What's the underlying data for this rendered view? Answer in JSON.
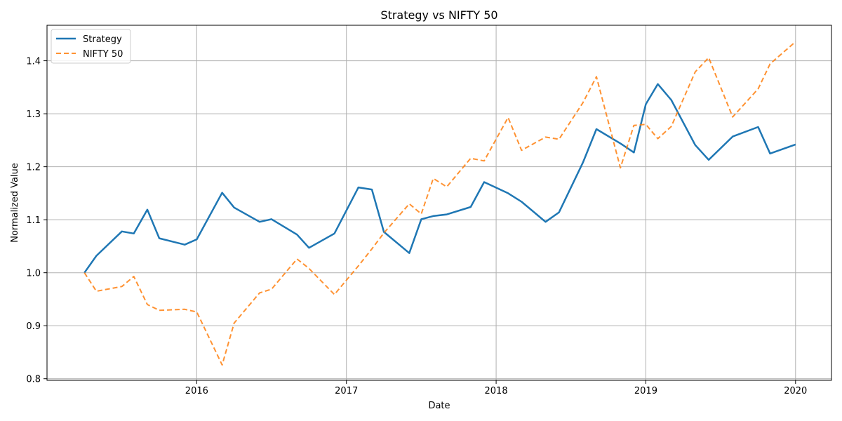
{
  "chart_data": {
    "type": "line",
    "title": "Strategy vs NIFTY 50",
    "xlabel": "Date",
    "ylabel": "Normalized Value",
    "xlim": [
      2015.0,
      2020.24
    ],
    "ylim": [
      0.797,
      1.467
    ],
    "x_ticks": [
      2016,
      2017,
      2018,
      2019,
      2020
    ],
    "x_tick_labels": [
      "2016",
      "2017",
      "2018",
      "2019",
      "2020"
    ],
    "y_ticks": [
      0.8,
      0.9,
      1.0,
      1.1,
      1.2,
      1.3,
      1.4
    ],
    "y_tick_labels": [
      "0.8",
      "0.9",
      "1.0",
      "1.1",
      "1.2",
      "1.3",
      "1.4"
    ],
    "grid": true,
    "legend_position": "top-left",
    "series": [
      {
        "name": "Strategy",
        "color": "#1f77b4",
        "style": "solid",
        "points": [
          [
            2015.25,
            1.0
          ],
          [
            2015.33,
            1.032
          ],
          [
            2015.5,
            1.078
          ],
          [
            2015.58,
            1.074
          ],
          [
            2015.67,
            1.119
          ],
          [
            2015.75,
            1.065
          ],
          [
            2015.92,
            1.053
          ],
          [
            2016.0,
            1.063
          ],
          [
            2016.17,
            1.151
          ],
          [
            2016.25,
            1.123
          ],
          [
            2016.42,
            1.096
          ],
          [
            2016.5,
            1.101
          ],
          [
            2016.67,
            1.072
          ],
          [
            2016.75,
            1.047
          ],
          [
            2016.92,
            1.074
          ],
          [
            2017.08,
            1.161
          ],
          [
            2017.17,
            1.157
          ],
          [
            2017.25,
            1.077
          ],
          [
            2017.42,
            1.037
          ],
          [
            2017.5,
            1.101
          ],
          [
            2017.58,
            1.107
          ],
          [
            2017.67,
            1.11
          ],
          [
            2017.83,
            1.124
          ],
          [
            2017.92,
            1.171
          ],
          [
            2018.08,
            1.15
          ],
          [
            2018.17,
            1.134
          ],
          [
            2018.33,
            1.096
          ],
          [
            2018.42,
            1.114
          ],
          [
            2018.58,
            1.208
          ],
          [
            2018.67,
            1.271
          ],
          [
            2018.83,
            1.244
          ],
          [
            2018.92,
            1.227
          ],
          [
            2019.0,
            1.318
          ],
          [
            2019.08,
            1.356
          ],
          [
            2019.17,
            1.326
          ],
          [
            2019.33,
            1.241
          ],
          [
            2019.42,
            1.213
          ],
          [
            2019.58,
            1.257
          ],
          [
            2019.75,
            1.275
          ],
          [
            2019.83,
            1.225
          ],
          [
            2020.0,
            1.242
          ]
        ]
      },
      {
        "name": "NIFTY 50",
        "color": "#ff7f0e",
        "style": "dashed",
        "points": [
          [
            2015.25,
            1.0
          ],
          [
            2015.33,
            0.965
          ],
          [
            2015.5,
            0.974
          ],
          [
            2015.58,
            0.993
          ],
          [
            2015.67,
            0.94
          ],
          [
            2015.75,
            0.929
          ],
          [
            2015.92,
            0.931
          ],
          [
            2016.0,
            0.926
          ],
          [
            2016.17,
            0.826
          ],
          [
            2016.25,
            0.905
          ],
          [
            2016.42,
            0.962
          ],
          [
            2016.5,
            0.969
          ],
          [
            2016.67,
            1.026
          ],
          [
            2016.75,
            1.008
          ],
          [
            2016.92,
            0.959
          ],
          [
            2017.08,
            1.013
          ],
          [
            2017.17,
            1.045
          ],
          [
            2017.25,
            1.075
          ],
          [
            2017.42,
            1.13
          ],
          [
            2017.5,
            1.111
          ],
          [
            2017.58,
            1.178
          ],
          [
            2017.67,
            1.162
          ],
          [
            2017.83,
            1.216
          ],
          [
            2017.92,
            1.211
          ],
          [
            2018.08,
            1.293
          ],
          [
            2018.17,
            1.231
          ],
          [
            2018.33,
            1.256
          ],
          [
            2018.42,
            1.252
          ],
          [
            2018.58,
            1.321
          ],
          [
            2018.67,
            1.37
          ],
          [
            2018.83,
            1.198
          ],
          [
            2018.92,
            1.278
          ],
          [
            2019.0,
            1.28
          ],
          [
            2019.08,
            1.253
          ],
          [
            2019.17,
            1.276
          ],
          [
            2019.33,
            1.379
          ],
          [
            2019.42,
            1.406
          ],
          [
            2019.58,
            1.294
          ],
          [
            2019.75,
            1.347
          ],
          [
            2019.83,
            1.394
          ],
          [
            2020.0,
            1.436
          ]
        ]
      }
    ]
  }
}
